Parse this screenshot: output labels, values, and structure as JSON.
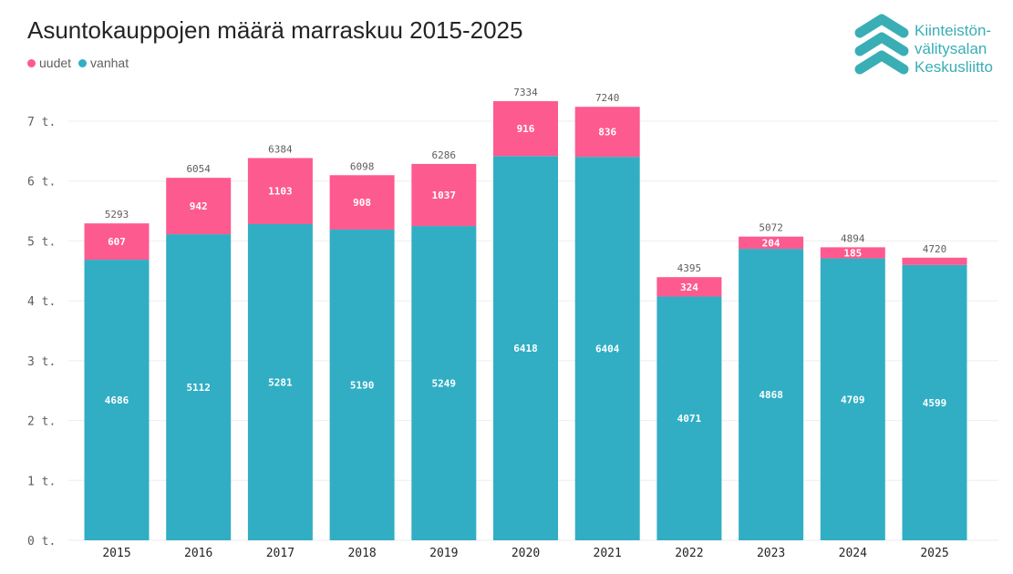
{
  "title": "Asuntokauppojen määrä marraskuu 2015-2025",
  "logo": {
    "lines": [
      "Kiinteistön-",
      "välitysalan",
      "Keskusliitto"
    ]
  },
  "colors": {
    "uudet": "#fd5a8f",
    "vanhat": "#31aec4",
    "logo": "#3aaeb5"
  },
  "chart_data": {
    "type": "bar",
    "stacked": true,
    "title": "Asuntokauppojen määrä marraskuu 2015-2025",
    "categories": [
      "2015",
      "2016",
      "2017",
      "2018",
      "2019",
      "2020",
      "2021",
      "2022",
      "2023",
      "2024",
      "2025"
    ],
    "series": [
      {
        "name": "vanhat",
        "values": [
          4686,
          5112,
          5281,
          5190,
          5249,
          6418,
          6404,
          4071,
          4868,
          4709,
          4599
        ]
      },
      {
        "name": "uudet",
        "values": [
          607,
          942,
          1103,
          908,
          1037,
          916,
          836,
          324,
          204,
          185,
          121
        ]
      }
    ],
    "totals": [
      5293,
      6054,
      6384,
      6098,
      6286,
      7334,
      7240,
      4395,
      5072,
      4894,
      4720
    ],
    "ylim": [
      0,
      7000
    ],
    "yticks": [
      0,
      1000,
      2000,
      3000,
      4000,
      5000,
      6000,
      7000
    ],
    "ytick_labels": [
      "0 t.",
      "1 t.",
      "2 t.",
      "3 t.",
      "4 t.",
      "5 t.",
      "6 t.",
      "7 t."
    ],
    "grid": true,
    "legend": "top-left"
  }
}
